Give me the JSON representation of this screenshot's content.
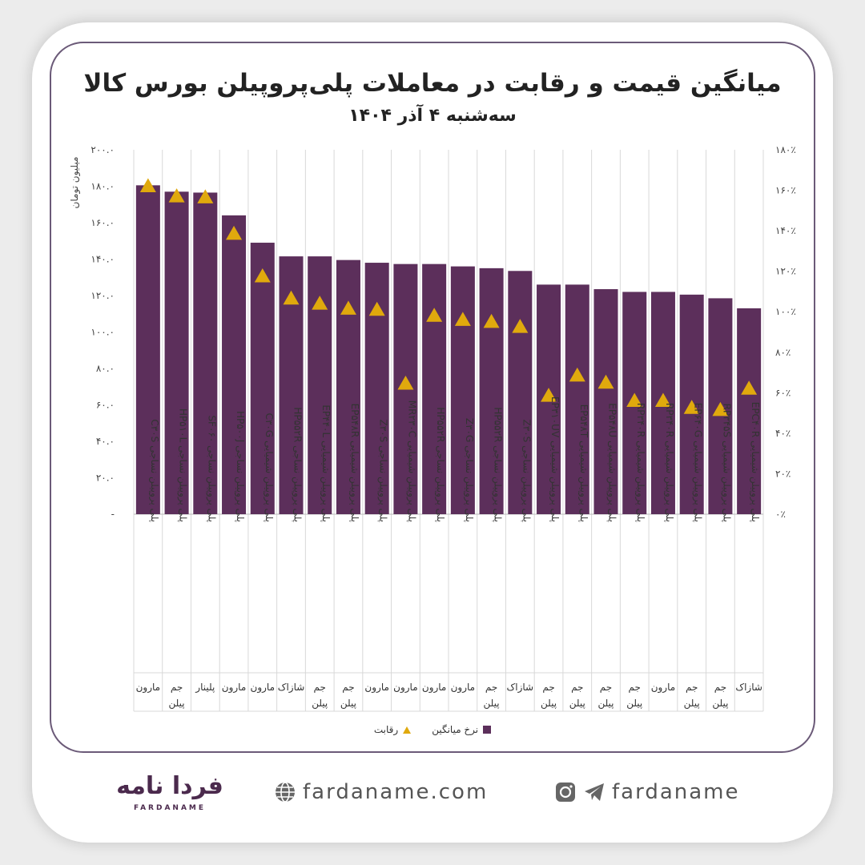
{
  "header": {
    "title": "میانگین قیمت و رقابت در معاملات پلی‌پروپیلن بورس کالا",
    "subtitle": "سه‌شنبه ۴ آذر ۱۴۰۴"
  },
  "chart_data": {
    "type": "bar",
    "ylabel": "میلیون تومان",
    "ylim": [
      0,
      200
    ],
    "y2lim": [
      0,
      180
    ],
    "yticks": [
      "-",
      "۲۰.۰",
      "۴۰.۰",
      "۶۰.۰",
      "۸۰.۰",
      "۱۰۰.۰",
      "۱۲۰.۰",
      "۱۴۰.۰",
      "۱۶۰.۰",
      "۱۸۰.۰",
      "۲۰۰.۰"
    ],
    "y2ticks": [
      "۰٪",
      "۲۰٪",
      "۴۰٪",
      "۶۰٪",
      "۸۰٪",
      "۱۰۰٪",
      "۱۲۰٪",
      "۱۴۰٪",
      "۱۶۰٪",
      "۱۸۰٪"
    ],
    "categories": [
      "پلی پروپیلن نساجی C۳۰S",
      "پلی پروپیلن نساجی HP۵۱۰L",
      "پلی پروپیلن نساجی SF۰۶۰",
      "پلی پروپیلن نساجی HP۵۰۰J",
      "پلی پروپیلن شیمیایی C۳۰G",
      "پلی پروپیلن نساجی HP۵۵۲R",
      "پلی پروپیلن شیمیایی EP۴۴۰L",
      "پلی پروپیلن شیمیایی EP۵۴۸R",
      "پلی پروپیلن نساجی Z۳۰S",
      "پلی پروپیلن شیمیایی MR۲۳۰C",
      "پلی پروپیلن نساجی HP۵۵۲R",
      "پلی پروپیلن نساجی Z۳۰G",
      "پلی پروپیلن نساجی HP۵۵۲R",
      "پلی پروپیلن نساجی Z۳۰S",
      "پلی پروپیلن شیمیایی EP۳۱۰UV",
      "پلی پروپیلن شیمیایی EP۵۴۸T",
      "پلی پروپیلن شیمیایی EP۵۴۸U",
      "پلی پروپیلن شیمیایی RP۳۴۰R",
      "پلی پروپیلن شیمیایی RP۳۴۰R",
      "پلی پروپیلن شیمیایی EP۶۴۰G",
      "پلی پروپیلن شیمیایی RP۳۴۵S",
      "پلی پروپیلن شیمیایی EPC۴۰R"
    ],
    "groups": [
      {
        "label": "مارون",
        "span": 1
      },
      {
        "label": "جم پیلن",
        "span": 1
      },
      {
        "label": "پلینار",
        "span": 1
      },
      {
        "label": "مارون",
        "span": 1
      },
      {
        "label": "مارون",
        "span": 1
      },
      {
        "label": "شازاک",
        "span": 1
      },
      {
        "label": "جم پیلن",
        "span": 1
      },
      {
        "label": "جم پیلن",
        "span": 1
      },
      {
        "label": "مارون",
        "span": 1
      },
      {
        "label": "مارون",
        "span": 1
      },
      {
        "label": "مارون",
        "span": 1
      },
      {
        "label": "مارون",
        "span": 1
      },
      {
        "label": "جم پیلن",
        "span": 1
      },
      {
        "label": "شازاک",
        "span": 1
      },
      {
        "label": "جم پیلن",
        "span": 1
      },
      {
        "label": "جم پیلن",
        "span": 1
      },
      {
        "label": "جم پیلن",
        "span": 1
      },
      {
        "label": "جم پیلن",
        "span": 1
      },
      {
        "label": "مارون",
        "span": 1
      },
      {
        "label": "جم پیلن",
        "span": 1
      },
      {
        "label": "جم پیلن",
        "span": 1
      },
      {
        "label": "شازاک",
        "span": 1
      }
    ],
    "series": [
      {
        "name": "نرخ میانگین",
        "color": "#5c2f5b",
        "values": [
          180.5,
          177,
          176.5,
          164,
          149,
          141.5,
          141.5,
          139.5,
          138,
          137.3,
          137.3,
          136,
          135,
          133.5,
          126,
          126,
          123.5,
          122,
          122,
          120.5,
          118.5,
          113
        ]
      },
      {
        "name": "رقابت",
        "color": "#e0a90d",
        "axis": "right",
        "values": [
          162,
          157,
          156.5,
          138.5,
          117.5,
          106.5,
          104,
          101.5,
          101,
          64.5,
          98,
          96,
          95,
          92.5,
          58.5,
          68.5,
          65,
          56,
          56,
          52.5,
          51.5,
          62
        ]
      }
    ],
    "legend_position": "bottom",
    "grid": "vertical"
  },
  "footer": {
    "logo_text": "فردا نامه",
    "logo_sub": "FARDANAME",
    "website": "fardaname.com",
    "social": "fardaname"
  }
}
